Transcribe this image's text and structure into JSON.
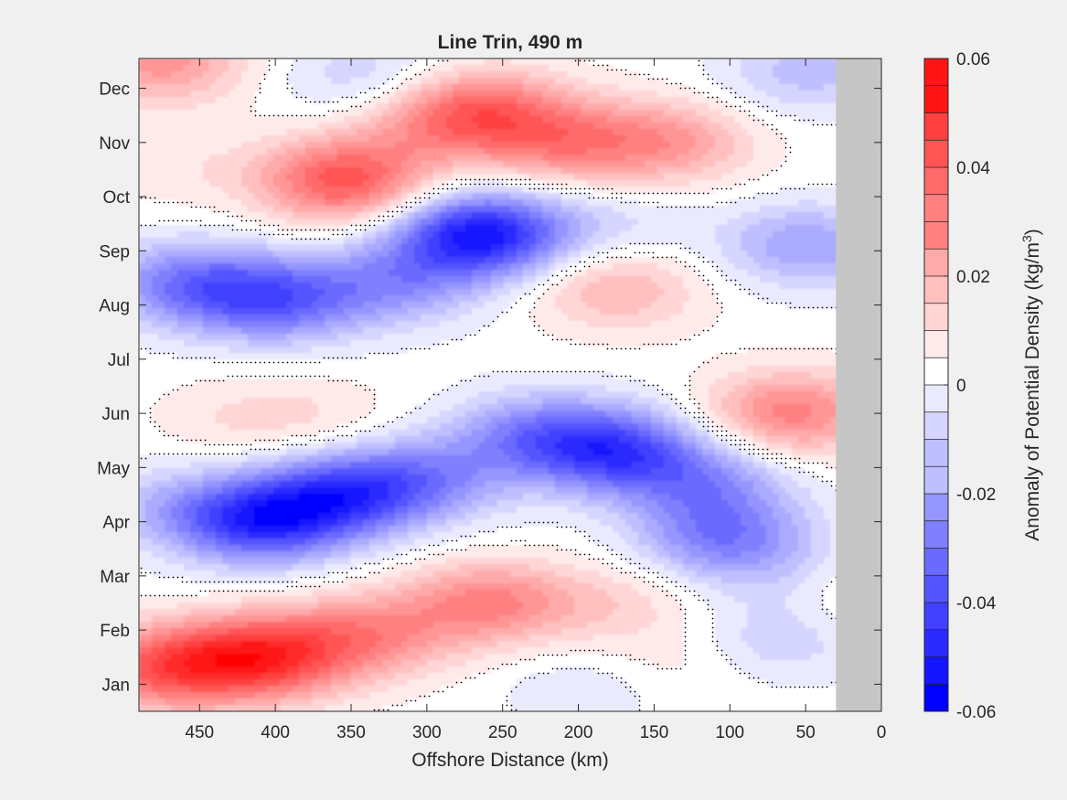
{
  "chart_data": {
    "type": "heatmap",
    "title": "Line Trin, 490 m",
    "xlabel": "Offshore Distance (km)",
    "ylabel": "",
    "x_reversed": true,
    "xlim": [
      0,
      490
    ],
    "x_ticks": [
      450,
      400,
      350,
      300,
      250,
      200,
      150,
      100,
      50,
      0
    ],
    "y_ticks": [
      "Jan",
      "Feb",
      "Mar",
      "Apr",
      "May",
      "Jun",
      "Jul",
      "Aug",
      "Sep",
      "Oct",
      "Nov",
      "Dec"
    ],
    "ylim_months": [
      0.5,
      12.55
    ],
    "no_data_region": {
      "x_from_km": 0,
      "x_to_km": 30,
      "color": "#c6c6c6"
    },
    "colorbar": {
      "label": "Anomaly of Potential Density (kg/m³)",
      "label_base": "Anomaly of Potential Density (kg/m",
      "label_sup": "3",
      "label_end": ")",
      "min": -0.06,
      "max": 0.06,
      "step": 0.005,
      "ticks": [
        0.06,
        0.04,
        0.02,
        0,
        -0.02,
        -0.04,
        -0.06
      ],
      "tick_labels": [
        "0.06",
        "0.04",
        "0.02",
        "0",
        "-0.02",
        "-0.04",
        "-0.06"
      ],
      "neg_color": "#0000ff",
      "pos_color": "#ff0000"
    },
    "colors": {
      "positive": "#ff0000",
      "negative": "#0000ff",
      "zero": "#ffffff",
      "contour": "#000000",
      "background": "#f0f0f0"
    },
    "approx_anomaly_centers": [
      {
        "x_km": 355,
        "month": 10.3,
        "value": 0.04
      },
      {
        "x_km": 475,
        "month": 12.5,
        "value": 0.025
      },
      {
        "x_km": 265,
        "month": 11.6,
        "value": 0.03
      },
      {
        "x_km": 210,
        "month": 11.0,
        "value": 0.025
      },
      {
        "x_km": 140,
        "month": 11.0,
        "value": 0.022
      },
      {
        "x_km": 300,
        "month": 11.3,
        "value": 0.012
      },
      {
        "x_km": 470,
        "month": 10.6,
        "value": 0.006
      },
      {
        "x_km": 340,
        "month": 12.2,
        "value": -0.012
      },
      {
        "x_km": 265,
        "month": 9.3,
        "value": -0.055
      },
      {
        "x_km": 400,
        "month": 8.1,
        "value": -0.035
      },
      {
        "x_km": 460,
        "month": 8.4,
        "value": -0.028
      },
      {
        "x_km": 320,
        "month": 8.4,
        "value": -0.022
      },
      {
        "x_km": 175,
        "month": 9.5,
        "value": -0.008
      },
      {
        "x_km": 50,
        "month": 9.1,
        "value": -0.022
      },
      {
        "x_km": 50,
        "month": 12.3,
        "value": -0.015
      },
      {
        "x_km": 175,
        "month": 8.3,
        "value": 0.018
      },
      {
        "x_km": 60,
        "month": 6.0,
        "value": 0.03
      },
      {
        "x_km": 375,
        "month": 5.9,
        "value": 0.007
      },
      {
        "x_km": 430,
        "month": 5.9,
        "value": 0.006
      },
      {
        "x_km": 175,
        "month": 5.3,
        "value": -0.04
      },
      {
        "x_km": 230,
        "month": 5.6,
        "value": -0.025
      },
      {
        "x_km": 115,
        "month": 4.7,
        "value": -0.022
      },
      {
        "x_km": 105,
        "month": 3.7,
        "value": -0.028
      },
      {
        "x_km": 410,
        "month": 4.0,
        "value": -0.045
      },
      {
        "x_km": 355,
        "month": 4.5,
        "value": -0.038
      },
      {
        "x_km": 300,
        "month": 4.8,
        "value": -0.022
      },
      {
        "x_km": 470,
        "month": 4.3,
        "value": -0.012
      },
      {
        "x_km": 410,
        "month": 1.5,
        "value": 0.045
      },
      {
        "x_km": 475,
        "month": 1.3,
        "value": 0.035
      },
      {
        "x_km": 340,
        "month": 1.9,
        "value": 0.025
      },
      {
        "x_km": 260,
        "month": 2.5,
        "value": 0.028
      },
      {
        "x_km": 175,
        "month": 2.5,
        "value": 0.01
      },
      {
        "x_km": 130,
        "month": 1.4,
        "value": 0.006
      },
      {
        "x_km": 195,
        "month": 0.9,
        "value": -0.007
      },
      {
        "x_km": 70,
        "month": 1.8,
        "value": -0.012
      },
      {
        "x_km": 50,
        "month": 3.0,
        "value": -0.012
      },
      {
        "x_km": 25,
        "month": 2.8,
        "value": 0.012
      }
    ]
  }
}
